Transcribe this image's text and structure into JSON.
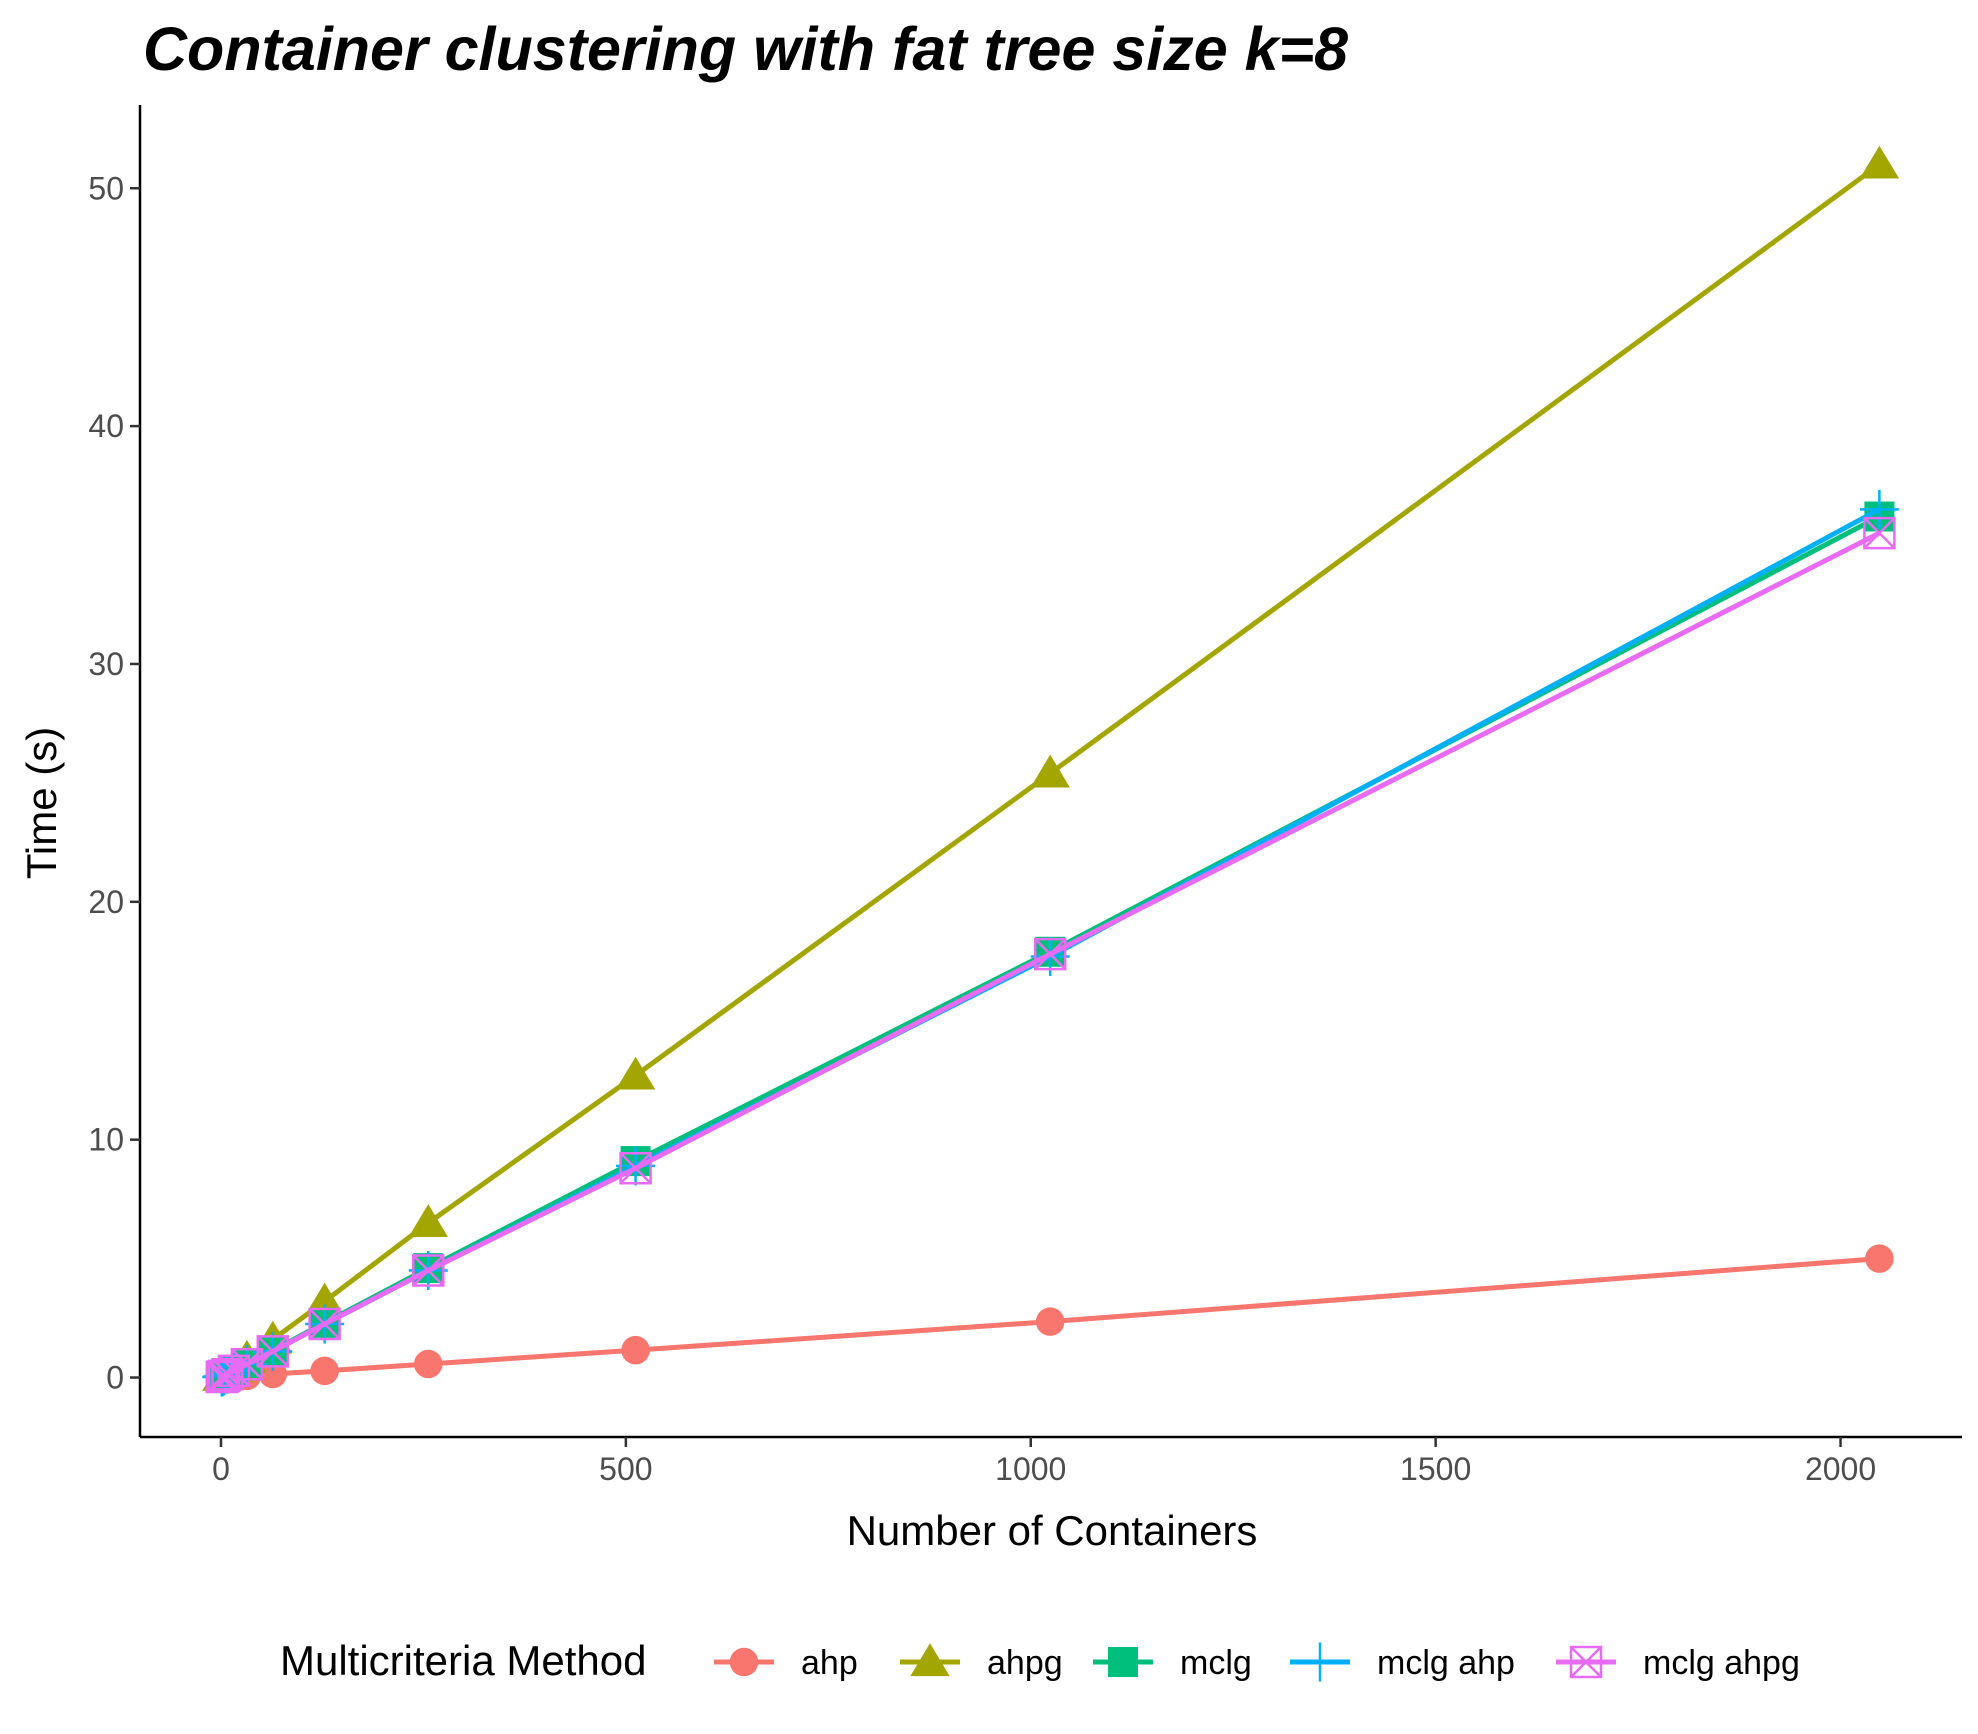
{
  "chart_data": {
    "type": "line",
    "title": "Container clustering with fat tree size k=8",
    "xlabel": "Number of Containers",
    "ylabel": "Time (s)",
    "xlim": [
      -100,
      2150
    ],
    "ylim": [
      -2.5,
      53.5
    ],
    "xticks": [
      0,
      500,
      1000,
      1500,
      2000
    ],
    "yticks": [
      0,
      10,
      20,
      30,
      40,
      50
    ],
    "grid": false,
    "legend_position": "bottom",
    "legend_title": "Multicriteria Method",
    "x": [
      1,
      2,
      4,
      8,
      16,
      32,
      64,
      128,
      256,
      512,
      1024,
      2048
    ],
    "series": [
      {
        "name": "ahp",
        "color": "#F8766D",
        "marker": "circle",
        "values": [
          0.0,
          0.0,
          0.0,
          0.01,
          0.03,
          0.07,
          0.15,
          0.28,
          0.57,
          1.15,
          2.35,
          5.0
        ]
      },
      {
        "name": "ahpg",
        "color": "#A3A500",
        "marker": "triangle",
        "values": [
          0.03,
          0.05,
          0.1,
          0.2,
          0.4,
          0.8,
          1.6,
          3.2,
          6.5,
          12.7,
          25.4,
          51.0
        ]
      },
      {
        "name": "mclg",
        "color": "#00BF7D",
        "marker": "square",
        "values": [
          0.02,
          0.04,
          0.07,
          0.14,
          0.28,
          0.57,
          1.13,
          2.3,
          4.6,
          9.1,
          17.9,
          36.2
        ]
      },
      {
        "name": "mclg ahp",
        "color": "#00B0F6",
        "marker": "plus",
        "values": [
          0.02,
          0.04,
          0.07,
          0.14,
          0.28,
          0.56,
          1.1,
          2.25,
          4.5,
          8.9,
          17.7,
          36.5
        ]
      },
      {
        "name": "mclg ahpg",
        "color": "#E76BF3",
        "marker": "boxcross",
        "values": [
          0.02,
          0.04,
          0.07,
          0.14,
          0.28,
          0.56,
          1.1,
          2.25,
          4.5,
          8.8,
          17.8,
          35.5
        ]
      }
    ]
  }
}
